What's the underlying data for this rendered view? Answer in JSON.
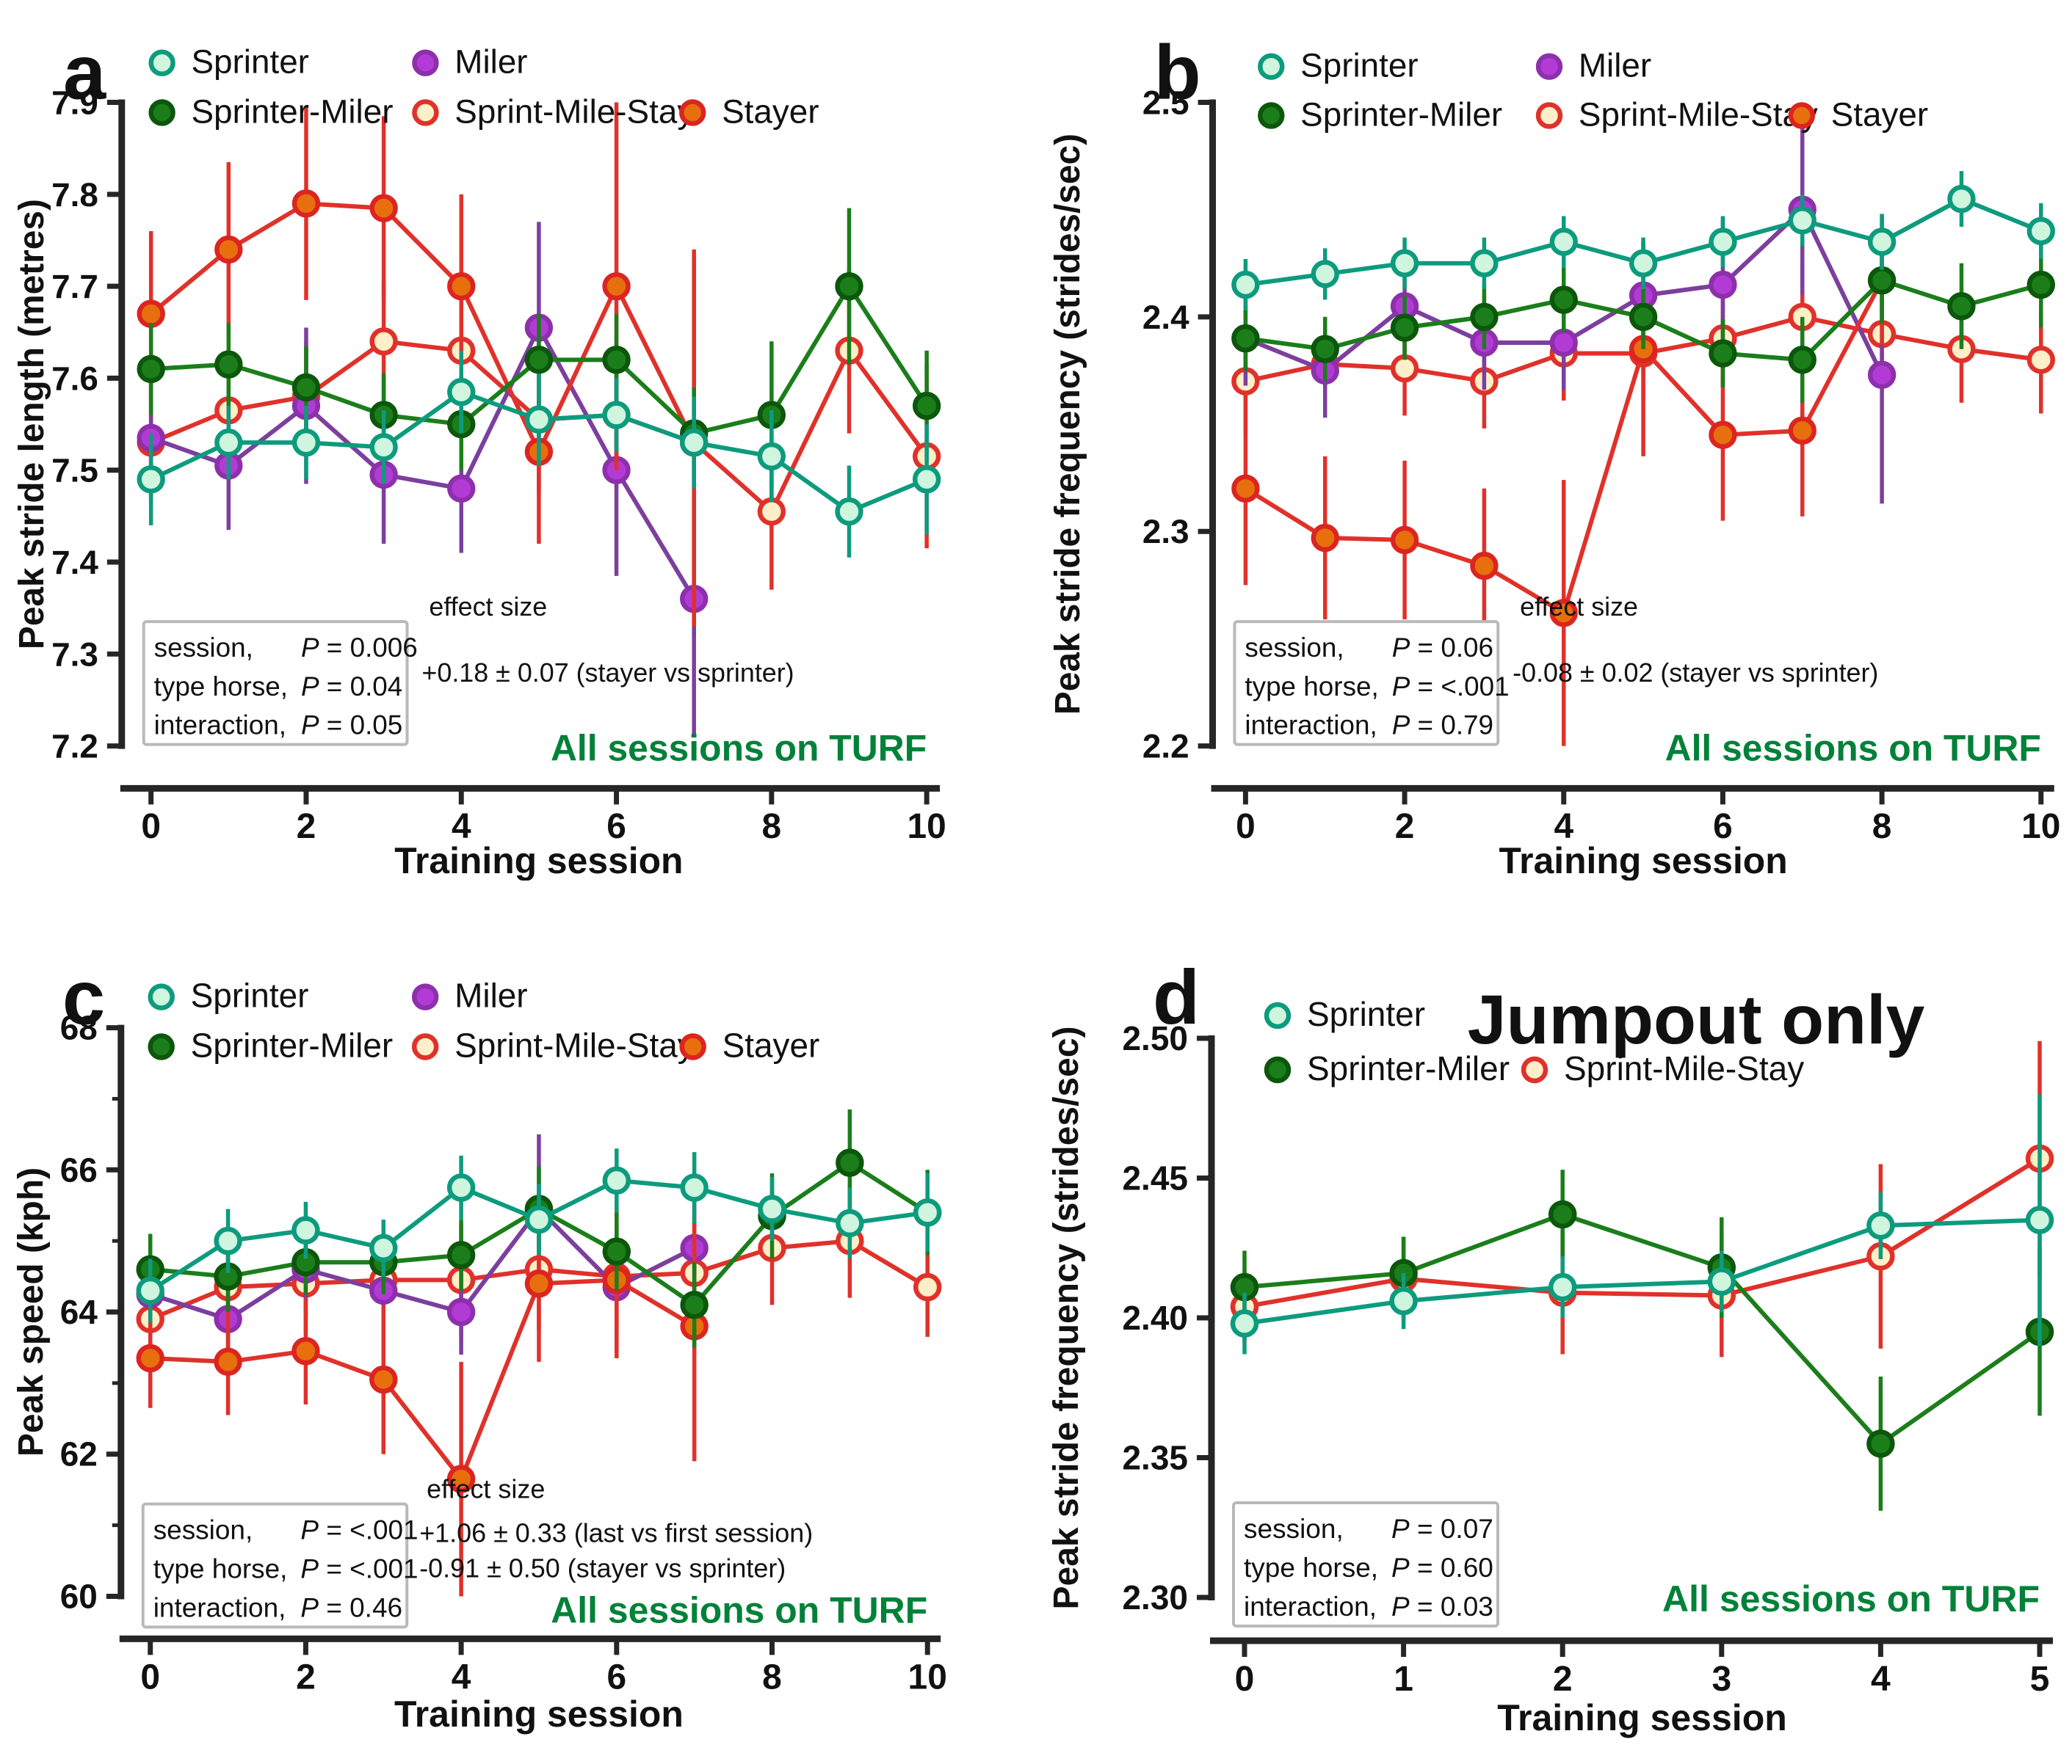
{
  "figure": {
    "note_color": "#028139",
    "axis_color": "#262626",
    "text_color": "#111111"
  },
  "series_colors": {
    "sprinter": {
      "fill": "#CFF5DE",
      "stroke": "#0D9B7D",
      "line": "#0D9B7D"
    },
    "sprinter_miler": {
      "fill": "#1B7E1B",
      "stroke": "#0B570B",
      "line": "#1B7E1B"
    },
    "miler": {
      "fill": "#B23BD6",
      "stroke": "#8E2FAB",
      "line": "#7C3F9E"
    },
    "sprint_mile_stay": {
      "fill": "#FDEFC8",
      "stroke": "#E0312A",
      "line": "#E0312A"
    },
    "stayer": {
      "fill": "#E76F0E",
      "stroke": "#DC2420",
      "line": "#E0312A"
    }
  },
  "chart_data": [
    {
      "id": "a",
      "panel_letter": "a",
      "type": "line",
      "title": "",
      "xlabel": "Training session",
      "ylabel": "Peak stride length (metres)",
      "xlim": [
        0,
        10
      ],
      "xticks": [
        0,
        2,
        4,
        6,
        8,
        10
      ],
      "ylim": [
        7.2,
        7.9
      ],
      "yticks": [
        7.2,
        7.3,
        7.4,
        7.5,
        7.6,
        7.7,
        7.8,
        7.9
      ],
      "ytick_labels": [
        "7.2",
        "7.3",
        "7.4",
        "7.5",
        "7.6",
        "7.7",
        "7.8",
        "7.9"
      ],
      "x": [
        0,
        1,
        2,
        3,
        4,
        5,
        6,
        7,
        8,
        9,
        10
      ],
      "series": [
        {
          "key": "sprinter",
          "name": "Sprinter",
          "values": [
            7.49,
            7.53,
            7.53,
            7.525,
            7.585,
            7.555,
            7.56,
            7.53,
            7.515,
            7.455,
            7.49
          ],
          "errors": [
            0.05,
            0.04,
            0.04,
            0.04,
            0.045,
            0.05,
            0.04,
            0.05,
            0.05,
            0.05,
            0.06
          ]
        },
        {
          "key": "sprinter_miler",
          "name": "Sprinter-Miler",
          "values": [
            7.61,
            7.615,
            7.59,
            7.56,
            7.55,
            7.62,
            7.62,
            7.54,
            7.56,
            7.7,
            7.57
          ],
          "errors": [
            0.05,
            0.045,
            0.045,
            0.045,
            0.05,
            0.05,
            0.05,
            0.05,
            0.08,
            0.085,
            0.06
          ]
        },
        {
          "key": "miler",
          "name": "Miler",
          "values": [
            7.535,
            7.505,
            7.57,
            7.495,
            7.48,
            7.655,
            7.5,
            7.36
          ],
          "errors": [
            0.07,
            0.07,
            0.085,
            0.075,
            0.07,
            0.115,
            0.115,
            0.15
          ]
        },
        {
          "key": "sprint_mile_stay",
          "name": "Sprint-Mile-Stay",
          "values": [
            7.53,
            7.565,
            7.58,
            7.64,
            7.63,
            7.555,
            7.56,
            7.53,
            7.455,
            7.63,
            7.515
          ],
          "errors": [
            0.06,
            0.06,
            0.06,
            0.065,
            0.07,
            0.08,
            0.08,
            0.21,
            0.085,
            0.09,
            0.1
          ]
        },
        {
          "key": "stayer",
          "name": "Stayer",
          "values": [
            7.67,
            7.74,
            7.79,
            7.785,
            7.7,
            7.52,
            7.7,
            7.53
          ],
          "errors": [
            0.09,
            0.095,
            0.105,
            0.1,
            0.1,
            0.1,
            0.2,
            0.2
          ]
        }
      ],
      "stats_box": {
        "rows": [
          {
            "label": "session,",
            "p": "0.006"
          },
          {
            "label": "type horse,",
            "p": "0.04"
          },
          {
            "label": "interaction,",
            "p": "0.05"
          }
        ]
      },
      "effect_size": {
        "label": "effect size",
        "lines": [
          "+0.18 ± 0.07 (stayer vs sprinter)"
        ]
      },
      "footer_note": "All sessions on TURF"
    },
    {
      "id": "b",
      "panel_letter": "b",
      "type": "line",
      "title": "",
      "xlabel": "Training session",
      "ylabel": "Peak stride frequency (strides/sec)",
      "xlim": [
        0,
        10
      ],
      "xticks": [
        0,
        2,
        4,
        6,
        8,
        10
      ],
      "ylim": [
        2.2,
        2.5
      ],
      "yticks": [
        2.2,
        2.3,
        2.4,
        2.5
      ],
      "ytick_labels": [
        "2.2",
        "2.3",
        "2.4",
        "2.5"
      ],
      "x": [
        0,
        1,
        2,
        3,
        4,
        5,
        6,
        7,
        8,
        9,
        10
      ],
      "series": [
        {
          "key": "sprinter",
          "name": "Sprinter",
          "values": [
            2.415,
            2.42,
            2.425,
            2.425,
            2.435,
            2.425,
            2.435,
            2.445,
            2.435,
            2.455,
            2.44
          ],
          "errors": [
            0.012,
            0.012,
            0.012,
            0.012,
            0.012,
            0.012,
            0.012,
            0.012,
            0.013,
            0.013,
            0.013
          ]
        },
        {
          "key": "sprinter_miler",
          "name": "Sprinter-Miler",
          "values": [
            2.39,
            2.385,
            2.395,
            2.4,
            2.408,
            2.4,
            2.383,
            2.38,
            2.417,
            2.405,
            2.415
          ],
          "errors": [
            0.015,
            0.015,
            0.015,
            0.015,
            0.015,
            0.015,
            0.016,
            0.02,
            0.02,
            0.02,
            0.02
          ]
        },
        {
          "key": "miler",
          "name": "Miler",
          "values": [
            2.39,
            2.375,
            2.405,
            2.388,
            2.388,
            2.41,
            2.415,
            2.45,
            2.373
          ],
          "errors": [
            0.022,
            0.022,
            0.022,
            0.022,
            0.022,
            0.025,
            0.03,
            0.04,
            0.06
          ]
        },
        {
          "key": "sprint_mile_stay",
          "name": "Sprint-Mile-Stay",
          "values": [
            2.37,
            2.378,
            2.376,
            2.37,
            2.383,
            2.383,
            2.39,
            2.4,
            2.392,
            2.385,
            2.38
          ],
          "errors": [
            0.025,
            0.022,
            0.022,
            0.022,
            0.022,
            0.022,
            0.022,
            0.025,
            0.02,
            0.025,
            0.025
          ]
        },
        {
          "key": "stayer",
          "name": "Stayer",
          "values": [
            2.32,
            2.297,
            2.296,
            2.284,
            2.262,
            2.385,
            2.345,
            2.347,
            2.417
          ],
          "errors": [
            0.045,
            0.038,
            0.037,
            0.036,
            0.062,
            0.05,
            0.04,
            0.04,
            0.03
          ]
        }
      ],
      "stats_box": {
        "rows": [
          {
            "label": "session,",
            "p": "0.06"
          },
          {
            "label": "type horse,",
            "p": "<.001"
          },
          {
            "label": "interaction,",
            "p": "0.79"
          }
        ]
      },
      "effect_size": {
        "label": "effect size",
        "lines": [
          "-0.08 ± 0.02 (stayer vs sprinter)"
        ]
      },
      "footer_note": "All sessions on TURF"
    },
    {
      "id": "c",
      "panel_letter": "c",
      "type": "line",
      "title": "",
      "xlabel": "Training session",
      "ylabel": "Peak speed (kph)",
      "xlim": [
        0,
        10
      ],
      "xticks": [
        0,
        2,
        4,
        6,
        8,
        10
      ],
      "ylim": [
        60,
        68
      ],
      "yticks": [
        60,
        62,
        64,
        66,
        68
      ],
      "ytick_labels": [
        "60",
        "62",
        "64",
        "66",
        "68"
      ],
      "minor_yticks": [
        61,
        63,
        65,
        67
      ],
      "x": [
        0,
        1,
        2,
        3,
        4,
        5,
        6,
        7,
        8,
        9,
        10
      ],
      "series": [
        {
          "key": "sprinter",
          "name": "Sprinter",
          "values": [
            64.3,
            65.0,
            65.15,
            64.9,
            65.75,
            65.3,
            65.85,
            65.75,
            65.45,
            65.25,
            65.4
          ],
          "errors": [
            0.45,
            0.45,
            0.4,
            0.4,
            0.45,
            0.5,
            0.45,
            0.5,
            0.45,
            0.5,
            0.55
          ]
        },
        {
          "key": "sprinter_miler",
          "name": "Sprinter-Miler",
          "values": [
            64.6,
            64.5,
            64.7,
            64.7,
            64.8,
            65.45,
            64.85,
            64.1,
            65.35,
            66.1,
            65.4
          ],
          "errors": [
            0.5,
            0.5,
            0.45,
            0.45,
            0.5,
            0.6,
            0.55,
            0.6,
            0.6,
            0.75,
            0.6
          ]
        },
        {
          "key": "miler",
          "name": "Miler",
          "values": [
            64.25,
            63.9,
            64.6,
            64.3,
            64.0,
            65.45,
            64.35,
            64.9
          ],
          "errors": [
            0.55,
            0.6,
            0.65,
            0.6,
            0.6,
            1.05,
            0.9,
            1.05
          ]
        },
        {
          "key": "sprint_mile_stay",
          "name": "Sprint-Mile-Stay",
          "values": [
            63.9,
            64.35,
            64.4,
            64.45,
            64.45,
            64.6,
            64.5,
            64.55,
            64.9,
            65.0,
            64.35
          ],
          "errors": [
            0.75,
            0.7,
            0.7,
            0.75,
            0.8,
            0.85,
            0.8,
            0.85,
            0.8,
            0.8,
            0.7
          ]
        },
        {
          "key": "stayer",
          "name": "Stayer",
          "values": [
            63.35,
            63.3,
            63.45,
            63.05,
            61.65,
            64.4,
            64.45,
            63.8
          ],
          "errors": [
            0.7,
            0.75,
            0.75,
            1.05,
            1.65,
            1.1,
            1.1,
            1.9
          ]
        }
      ],
      "stats_box": {
        "rows": [
          {
            "label": "session,",
            "p": "<.001"
          },
          {
            "label": "type horse,",
            "p": "<.001"
          },
          {
            "label": "interaction,",
            "p": "0.46"
          }
        ]
      },
      "effect_size": {
        "label": "effect size",
        "lines": [
          "+1.06 ± 0.33 (last vs first session)",
          "-0.91 ± 0.50 (stayer vs sprinter)"
        ]
      },
      "footer_note": "All sessions on TURF"
    },
    {
      "id": "d",
      "panel_letter": "d",
      "type": "line",
      "title": "Jumpout only",
      "xlabel": "Training session",
      "ylabel": "Peak stride frequency (strides/sec)",
      "xlim": [
        0,
        5
      ],
      "xticks": [
        0,
        1,
        2,
        3,
        4,
        5
      ],
      "ylim": [
        2.3,
        2.5
      ],
      "yticks": [
        2.3,
        2.35,
        2.4,
        2.45,
        2.5
      ],
      "ytick_labels": [
        "2.30",
        "2.35",
        "2.40",
        "2.45",
        "2.50"
      ],
      "x": [
        0,
        1,
        2,
        3,
        4,
        5
      ],
      "series": [
        {
          "key": "sprinter",
          "name": "Sprinter",
          "values": [
            2.398,
            2.406,
            2.411,
            2.413,
            2.433,
            2.435
          ],
          "errors": [
            0.011,
            0.01,
            0.011,
            0.011,
            0.012,
            0.045
          ]
        },
        {
          "key": "sprinter_miler",
          "name": "Sprinter-Miler",
          "values": [
            2.411,
            2.416,
            2.437,
            2.418,
            2.355,
            2.395
          ],
          "errors": [
            0.013,
            0.013,
            0.016,
            0.018,
            0.024,
            0.03
          ]
        },
        {
          "key": "sprint_mile_stay",
          "name": "Sprint-Mile-Stay",
          "values": [
            2.404,
            2.414,
            2.409,
            2.408,
            2.422,
            2.457
          ],
          "errors": [
            0.013,
            0.015,
            0.022,
            0.022,
            0.033,
            0.042
          ]
        }
      ],
      "stats_box": {
        "rows": [
          {
            "label": "session,",
            "p": "0.07"
          },
          {
            "label": "type horse,",
            "p": "0.60"
          },
          {
            "label": "interaction,",
            "p": "0.03"
          }
        ]
      },
      "effect_size": null,
      "footer_note": "All sessions on TURF"
    }
  ]
}
